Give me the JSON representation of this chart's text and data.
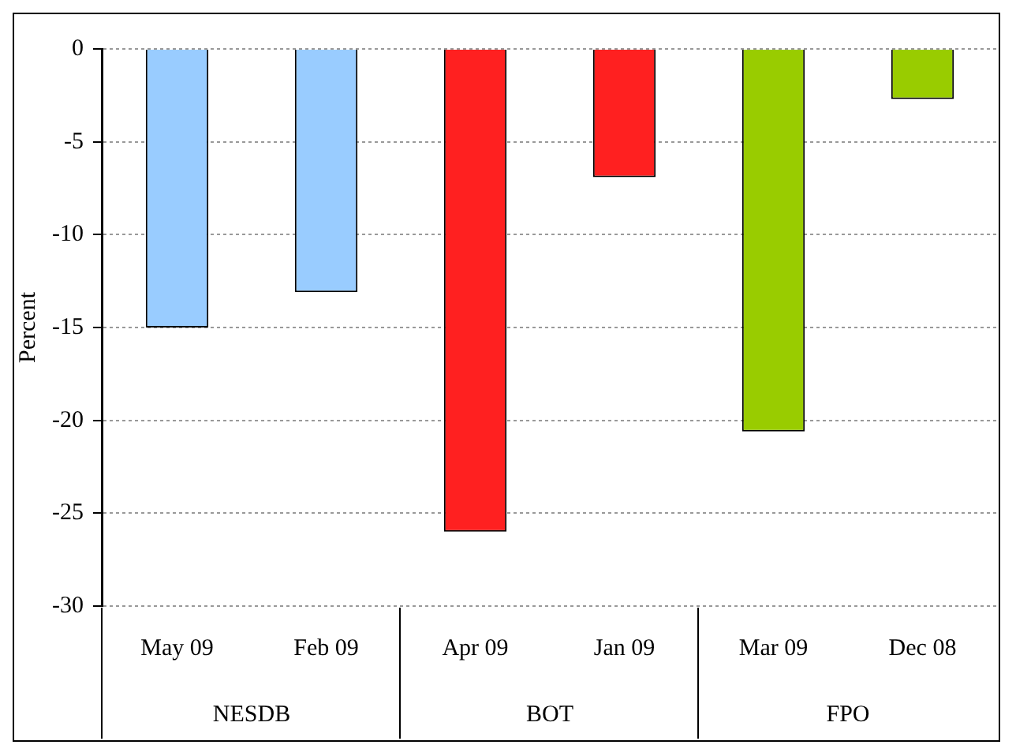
{
  "chart_data": {
    "type": "bar",
    "ylabel": "Percent",
    "categories": [
      "May 09",
      "Feb 09",
      "Apr 09",
      "Jan 09",
      "Mar 09",
      "Dec 08"
    ],
    "values": [
      -15.0,
      -13.1,
      -26.0,
      -6.9,
      -20.6,
      -2.7
    ],
    "colors": [
      "#99ccff",
      "#99ccff",
      "#ff2020",
      "#ff2020",
      "#99cc00",
      "#99cc00"
    ],
    "ylim": [
      -30,
      0
    ],
    "yticks": [
      -30,
      -25,
      -20,
      -15,
      -10,
      -5,
      0
    ],
    "grid": "y",
    "annotations": [
      "NESDB",
      "BOT",
      "FPO"
    ]
  }
}
